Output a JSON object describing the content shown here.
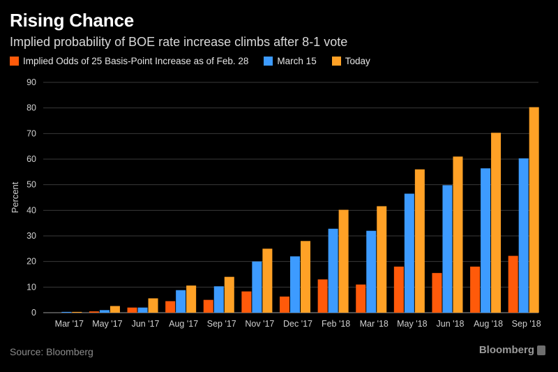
{
  "header": {
    "title": "Rising Chance",
    "subtitle": "Implied probability of BOE rate increase climbs after 8-1 vote"
  },
  "legend": [
    {
      "label": "Implied Odds of 25 Basis-Point Increase as of Feb. 28",
      "color": "#ff5a0a"
    },
    {
      "label": "March 15",
      "color": "#3d9bff"
    },
    {
      "label": "Today",
      "color": "#ffa126"
    }
  ],
  "footer": {
    "source": "Source: Bloomberg",
    "brand": "Bloomberg"
  },
  "chart_data": {
    "type": "bar",
    "categories": [
      "Mar '17",
      "May '17",
      "Jun '17",
      "Aug '17",
      "Sep '17",
      "Nov '17",
      "Dec '17",
      "Feb '18",
      "Mar '18",
      "May '18",
      "Jun '18",
      "Aug '18",
      "Sep '18"
    ],
    "series": [
      {
        "name": "Implied Odds of 25 Basis-Point Increase as of Feb. 28",
        "color": "#ff5a0a",
        "values": [
          0,
          0.5,
          2,
          4.5,
          5,
          8.3,
          6.3,
          13,
          11,
          18,
          15.5,
          18,
          22.2
        ]
      },
      {
        "name": "March 15",
        "color": "#3d9bff",
        "values": [
          0.3,
          1,
          2,
          8.8,
          10.3,
          20,
          22,
          32.8,
          32,
          46.5,
          49.8,
          56.4,
          60.3
        ]
      },
      {
        "name": "Today",
        "color": "#ffa126",
        "values": [
          0.3,
          2.6,
          5.6,
          10.6,
          14,
          25,
          28,
          40.2,
          41.6,
          56,
          61,
          70.3,
          80.3
        ]
      }
    ],
    "title": "Rising Chance",
    "subtitle": "Implied probability of BOE rate increase climbs after 8-1 vote",
    "xlabel": "",
    "ylabel": "Percent",
    "ylim": [
      0,
      90
    ],
    "yticks": [
      0,
      10,
      20,
      30,
      40,
      50,
      60,
      70,
      80,
      90
    ],
    "grid": true,
    "legend_position": "top-left"
  }
}
